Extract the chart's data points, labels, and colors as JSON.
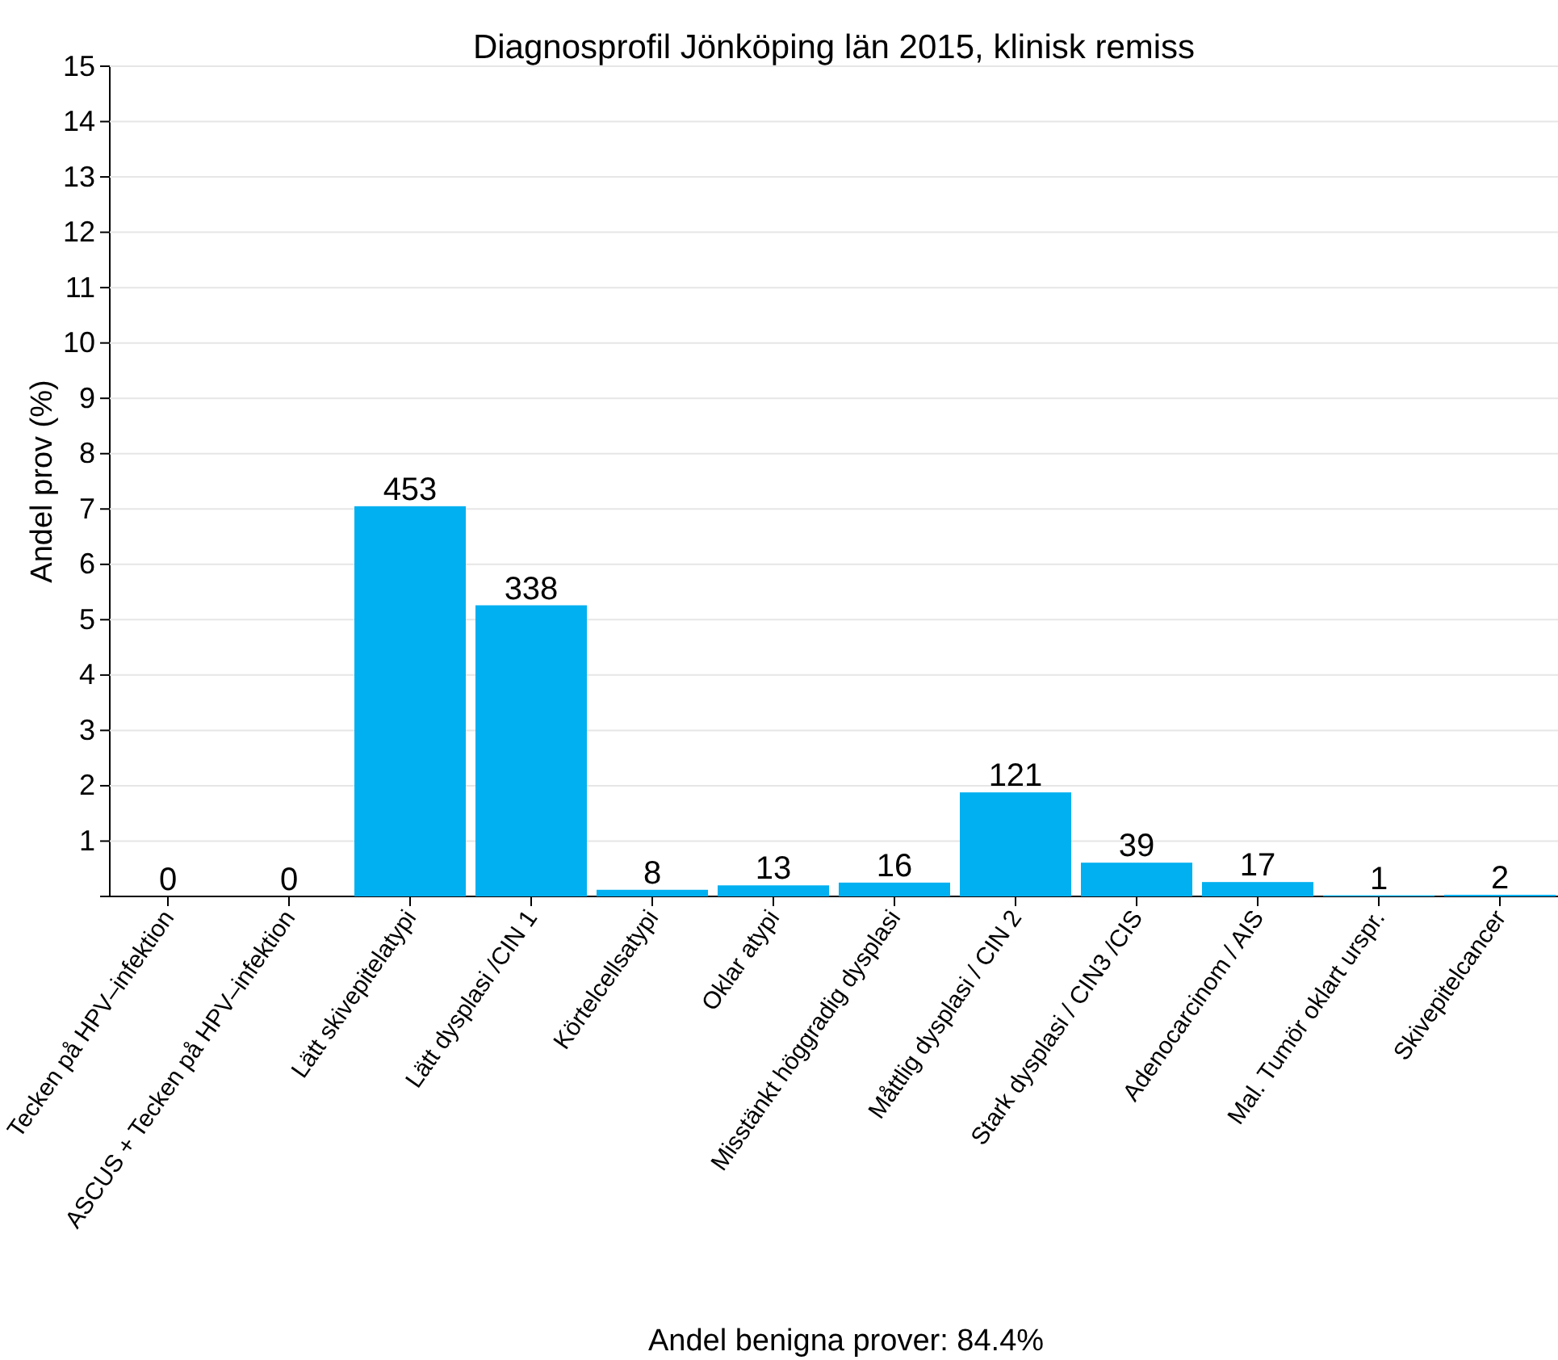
{
  "chart_data": {
    "type": "bar",
    "title": "Diagnosprofil Jönköping län 2015, klinisk remiss",
    "ylabel": "Andel prov (%)",
    "categories": [
      "Tecken på HPV–infektion",
      "ASCUS + Tecken på HPV–infektion",
      "Lätt skivepitelatypi",
      "Lätt dysplasi /CIN 1",
      "Körtelcellsatypi",
      "Oklar atypi",
      "Misstänkt höggradig dysplasi",
      "Måttlig dysplasi / CIN 2",
      "Stark dysplasi / CIN3 /CIS",
      "Adenocarcinom / AIS",
      "Mal. Tumör oklart urspr.",
      "Skivepitelcancer"
    ],
    "values": [
      0,
      0,
      7.05,
      5.26,
      0.12,
      0.2,
      0.25,
      1.88,
      0.61,
      0.26,
      0.02,
      0.03
    ],
    "color": "#00b0f0",
    "ylim": [
      0,
      15
    ],
    "yticks": [
      1,
      2,
      3,
      4,
      5,
      6,
      7,
      8,
      9,
      10,
      11,
      12,
      13,
      14,
      15
    ],
    "grid": "y",
    "annotations": [
      {
        "text": "0",
        "x": "Tecken på HPV–infektion",
        "y": 0
      },
      {
        "text": "0",
        "x": "ASCUS + Tecken på HPV–infektion",
        "y": 0
      },
      {
        "text": "453",
        "x": "Lätt skivepitelatypi",
        "y": 7.05
      },
      {
        "text": "338",
        "x": "Lätt dysplasi /CIN 1",
        "y": 5.26
      },
      {
        "text": "8",
        "x": "Körtelcellsatypi",
        "y": 0.12
      },
      {
        "text": "13",
        "x": "Oklar atypi",
        "y": 0.2
      },
      {
        "text": "16",
        "x": "Misstänkt höggradig dysplasi",
        "y": 0.25
      },
      {
        "text": "121",
        "x": "Måttlig dysplasi / CIN 2",
        "y": 1.88
      },
      {
        "text": "39",
        "x": "Stark dysplasi / CIN3 /CIS",
        "y": 0.61
      },
      {
        "text": "17",
        "x": "Adenocarcinom / AIS",
        "y": 0.26
      },
      {
        "text": "1",
        "x": "Mal. Tumör oklart urspr.",
        "y": 0.02
      },
      {
        "text": "2",
        "x": "Skivepitelcancer",
        "y": 0.03
      },
      "Andel benigna prover: 84.4%"
    ]
  }
}
